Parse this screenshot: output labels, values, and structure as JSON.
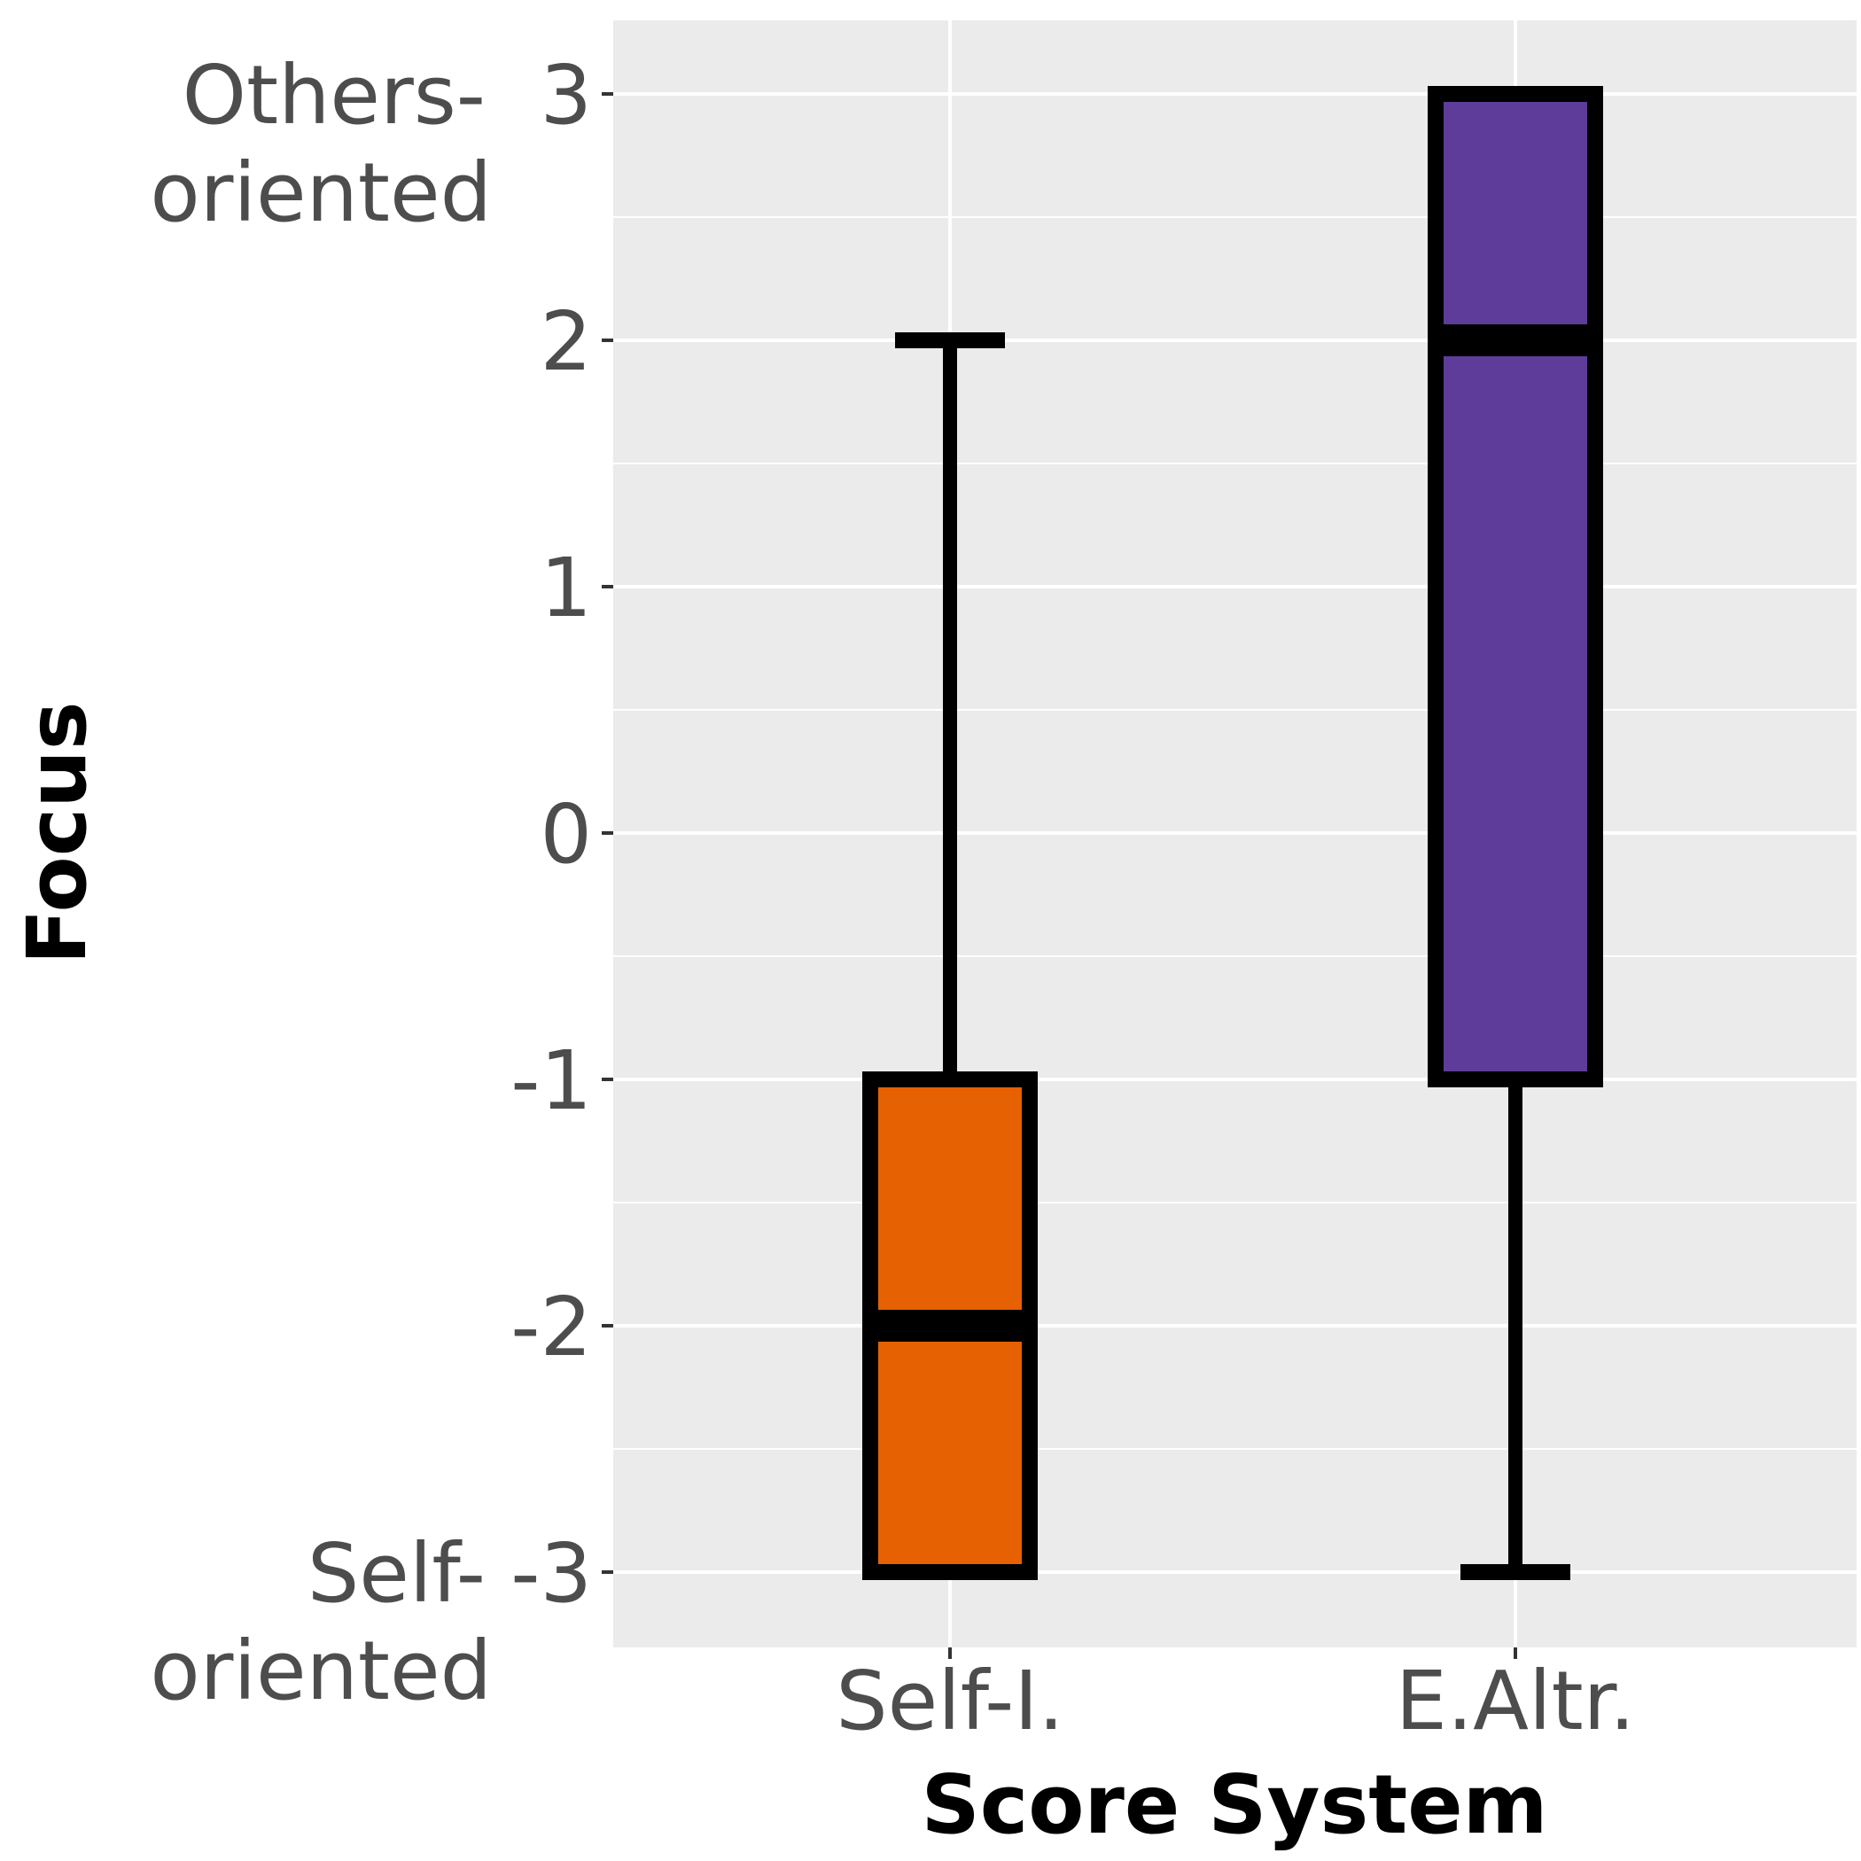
{
  "chart_data": {
    "type": "boxplot",
    "xlabel": "Score System",
    "ylabel": "Focus",
    "ylim": [
      -3.3,
      3.3
    ],
    "y_ticks": [
      {
        "value": 3,
        "label": "3",
        "annotation": [
          "Others-",
          "oriented"
        ]
      },
      {
        "value": 2,
        "label": "2"
      },
      {
        "value": 1,
        "label": "1"
      },
      {
        "value": 0,
        "label": "0"
      },
      {
        "value": -1,
        "label": "-1"
      },
      {
        "value": -2,
        "label": "-2"
      },
      {
        "value": -3,
        "label": "-3",
        "annotation": [
          "Self-",
          "oriented"
        ]
      }
    ],
    "categories": [
      "Self-I.",
      "E.Altr."
    ],
    "boxes": [
      {
        "category": "Self-I.",
        "min": -3,
        "q1": -3,
        "median": -2,
        "q3": -1,
        "max": 2,
        "color": "#e66101"
      },
      {
        "category": "E.Altr.",
        "min": -3,
        "q1": -1,
        "median": 2,
        "q3": 3,
        "max": 3,
        "color": "#5e3c99"
      }
    ],
    "grid": true,
    "panel_background": "#ebebeb",
    "grid_color": "#ffffff"
  }
}
